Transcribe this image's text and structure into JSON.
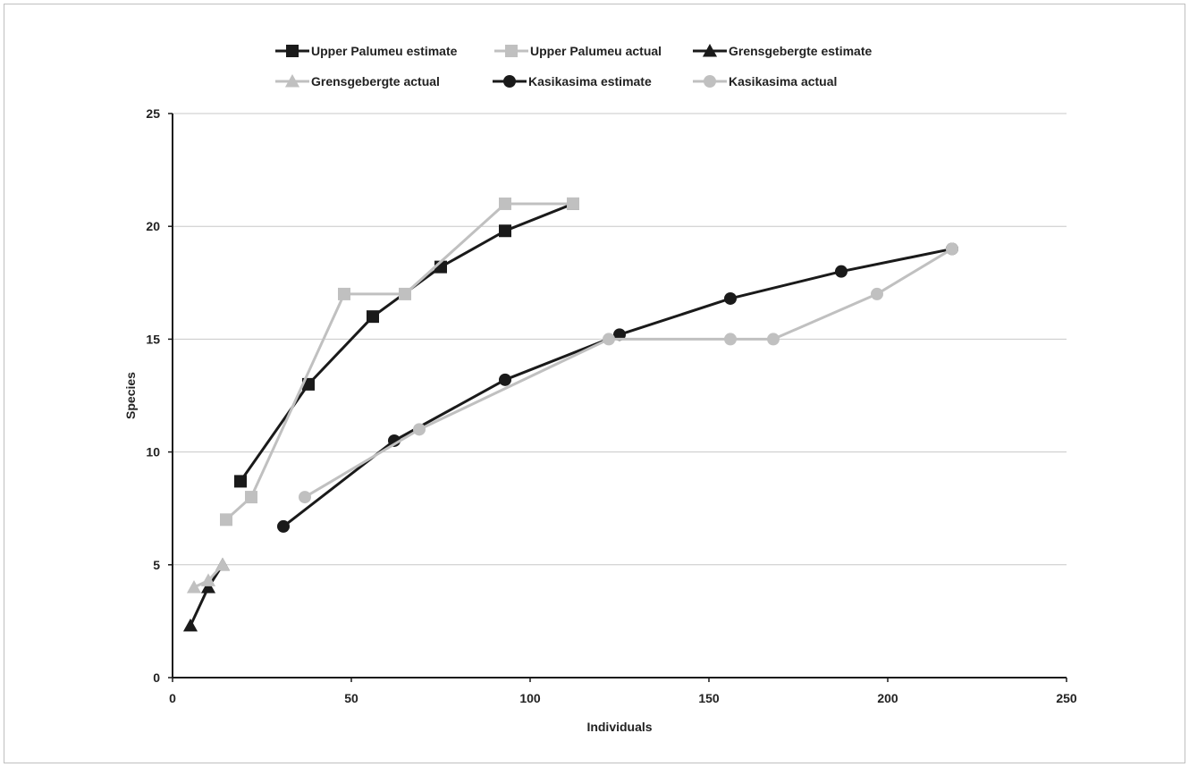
{
  "chart_data": {
    "type": "line",
    "title": "",
    "xlabel": "Individuals",
    "ylabel": "Species",
    "xlim": [
      0,
      250
    ],
    "ylim": [
      0,
      25
    ],
    "xticks": [
      0,
      50,
      100,
      150,
      200,
      250
    ],
    "yticks": [
      0,
      5,
      10,
      15,
      20,
      25
    ],
    "grid": "horizontal",
    "legend_position": "top",
    "series": [
      {
        "name": "Upper Palumeu estimate",
        "color": "#1a1a1a",
        "marker": "square",
        "x": [
          19,
          38,
          56,
          75,
          93,
          112
        ],
        "y": [
          8.7,
          13,
          16,
          18.2,
          19.8,
          21
        ]
      },
      {
        "name": "Upper Palumeu actual",
        "color": "#c0c0c0",
        "marker": "square",
        "x": [
          15,
          22,
          48,
          65,
          93,
          112
        ],
        "y": [
          7,
          8,
          17,
          17,
          21,
          21
        ]
      },
      {
        "name": "Grensgebergte estimate",
        "color": "#1a1a1a",
        "marker": "triangle",
        "x": [
          5,
          10,
          14
        ],
        "y": [
          2.3,
          4,
          5
        ]
      },
      {
        "name": "Grensgebergte actual",
        "color": "#c0c0c0",
        "marker": "triangle",
        "x": [
          6,
          10,
          14
        ],
        "y": [
          4,
          4.3,
          5
        ]
      },
      {
        "name": "Kasikasima estimate",
        "color": "#1a1a1a",
        "marker": "circle",
        "x": [
          31,
          62,
          93,
          125,
          156,
          187,
          218
        ],
        "y": [
          6.7,
          10.5,
          13.2,
          15.2,
          16.8,
          18,
          19
        ]
      },
      {
        "name": "Kasikasima actual",
        "color": "#c0c0c0",
        "marker": "circle",
        "x": [
          37,
          69,
          122,
          156,
          168,
          197,
          218
        ],
        "y": [
          8,
          11,
          15,
          15,
          15,
          17,
          19
        ]
      }
    ]
  }
}
